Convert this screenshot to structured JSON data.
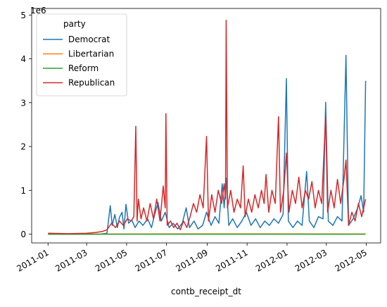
{
  "chart_data": {
    "type": "line",
    "title": "",
    "xlabel": "contb_receipt_dt",
    "ylabel": "",
    "y_offset_text": "1e6",
    "y_scale_multiplier": 1000000,
    "xlim": [
      "2010-12-07",
      "2012-05-23"
    ],
    "ylim": [
      -200000,
      5150000
    ],
    "x_tick_labels": [
      "2011-01",
      "2011-03",
      "2011-05",
      "2011-07",
      "2011-09",
      "2011-11",
      "2012-01",
      "2012-03",
      "2012-05"
    ],
    "x_ticks": [
      "2011-01-01",
      "2011-03-01",
      "2011-05-01",
      "2011-07-01",
      "2011-09-01",
      "2011-11-01",
      "2012-01-01",
      "2012-03-01",
      "2012-05-01"
    ],
    "y_ticks": [
      0,
      1000000,
      2000000,
      3000000,
      4000000,
      5000000
    ],
    "y_tick_labels": [
      "0",
      "1",
      "2",
      "3",
      "4",
      "5"
    ],
    "grid": false,
    "legend": {
      "title": "party",
      "placement": "upper-left",
      "entries": [
        "Democrat",
        "Libertarian",
        "Reform",
        "Republican"
      ]
    },
    "series": [
      {
        "name": "Democrat",
        "color": "#1f77b4",
        "points": [
          [
            "2011-01-01",
            0
          ],
          [
            "2011-03-20",
            0
          ],
          [
            "2011-04-01",
            20000
          ],
          [
            "2011-04-06",
            650000
          ],
          [
            "2011-04-09",
            200000
          ],
          [
            "2011-04-13",
            450000
          ],
          [
            "2011-04-17",
            150000
          ],
          [
            "2011-04-20",
            380000
          ],
          [
            "2011-04-24",
            500000
          ],
          [
            "2011-04-27",
            120000
          ],
          [
            "2011-04-30",
            680000
          ],
          [
            "2011-05-04",
            250000
          ],
          [
            "2011-05-09",
            320000
          ],
          [
            "2011-05-14",
            150000
          ],
          [
            "2011-05-20",
            300000
          ],
          [
            "2011-05-26",
            200000
          ],
          [
            "2011-06-02",
            350000
          ],
          [
            "2011-06-08",
            150000
          ],
          [
            "2011-06-13",
            450000
          ],
          [
            "2011-06-18",
            720000
          ],
          [
            "2011-06-23",
            300000
          ],
          [
            "2011-06-29",
            500000
          ],
          [
            "2011-07-05",
            150000
          ],
          [
            "2011-07-11",
            250000
          ],
          [
            "2011-07-18",
            120000
          ],
          [
            "2011-07-25",
            250000
          ],
          [
            "2011-07-31",
            600000
          ],
          [
            "2011-08-05",
            150000
          ],
          [
            "2011-08-12",
            300000
          ],
          [
            "2011-08-18",
            120000
          ],
          [
            "2011-08-25",
            200000
          ],
          [
            "2011-08-31",
            500000
          ],
          [
            "2011-09-07",
            200000
          ],
          [
            "2011-09-13",
            400000
          ],
          [
            "2011-09-19",
            250000
          ],
          [
            "2011-09-24",
            1150000
          ],
          [
            "2011-09-27",
            600000
          ],
          [
            "2011-09-30",
            1280000
          ],
          [
            "2011-10-04",
            200000
          ],
          [
            "2011-10-10",
            350000
          ],
          [
            "2011-10-17",
            150000
          ],
          [
            "2011-10-24",
            300000
          ],
          [
            "2011-10-31",
            500000
          ],
          [
            "2011-11-07",
            200000
          ],
          [
            "2011-11-14",
            350000
          ],
          [
            "2011-11-21",
            150000
          ],
          [
            "2011-11-28",
            300000
          ],
          [
            "2011-12-05",
            200000
          ],
          [
            "2011-12-12",
            350000
          ],
          [
            "2011-12-19",
            250000
          ],
          [
            "2011-12-26",
            450000
          ],
          [
            "2011-12-31",
            3550000
          ],
          [
            "2012-01-03",
            300000
          ],
          [
            "2012-01-10",
            150000
          ],
          [
            "2012-01-17",
            300000
          ],
          [
            "2012-01-24",
            200000
          ],
          [
            "2012-01-31",
            1430000
          ],
          [
            "2012-02-04",
            300000
          ],
          [
            "2012-02-11",
            150000
          ],
          [
            "2012-02-18",
            400000
          ],
          [
            "2012-02-25",
            350000
          ],
          [
            "2012-02-29",
            3010000
          ],
          [
            "2012-03-04",
            300000
          ],
          [
            "2012-03-11",
            200000
          ],
          [
            "2012-03-18",
            400000
          ],
          [
            "2012-03-25",
            300000
          ],
          [
            "2012-03-31",
            4080000
          ],
          [
            "2012-04-04",
            200000
          ],
          [
            "2012-04-11",
            350000
          ],
          [
            "2012-04-18",
            600000
          ],
          [
            "2012-04-23",
            880000
          ],
          [
            "2012-04-27",
            500000
          ],
          [
            "2012-04-30",
            3500000
          ]
        ]
      },
      {
        "name": "Libertarian",
        "color": "#ff7f0e",
        "points": [
          [
            "2011-01-01",
            0
          ],
          [
            "2011-06-01",
            5000
          ],
          [
            "2011-12-01",
            8000
          ],
          [
            "2012-04-30",
            5000
          ]
        ]
      },
      {
        "name": "Reform",
        "color": "#2ca02c",
        "points": [
          [
            "2011-01-01",
            0
          ],
          [
            "2012-04-30",
            0
          ]
        ]
      },
      {
        "name": "Republican",
        "color": "#d62728",
        "points": [
          [
            "2011-01-01",
            20000
          ],
          [
            "2011-02-01",
            10000
          ],
          [
            "2011-03-01",
            20000
          ],
          [
            "2011-03-15",
            40000
          ],
          [
            "2011-03-25",
            60000
          ],
          [
            "2011-04-01",
            100000
          ],
          [
            "2011-04-08",
            250000
          ],
          [
            "2011-04-14",
            150000
          ],
          [
            "2011-04-20",
            300000
          ],
          [
            "2011-04-26",
            200000
          ],
          [
            "2011-05-02",
            350000
          ],
          [
            "2011-05-08",
            300000
          ],
          [
            "2011-05-12",
            400000
          ],
          [
            "2011-05-15",
            2460000
          ],
          [
            "2011-05-17",
            300000
          ],
          [
            "2011-05-19",
            800000
          ],
          [
            "2011-05-23",
            350000
          ],
          [
            "2011-05-27",
            600000
          ],
          [
            "2011-06-01",
            300000
          ],
          [
            "2011-06-06",
            700000
          ],
          [
            "2011-06-11",
            350000
          ],
          [
            "2011-06-16",
            800000
          ],
          [
            "2011-06-21",
            300000
          ],
          [
            "2011-06-26",
            1100000
          ],
          [
            "2011-06-29",
            600000
          ],
          [
            "2011-06-30",
            2750000
          ],
          [
            "2011-07-02",
            200000
          ],
          [
            "2011-07-07",
            300000
          ],
          [
            "2011-07-12",
            150000
          ],
          [
            "2011-07-17",
            250000
          ],
          [
            "2011-07-22",
            100000
          ],
          [
            "2011-07-27",
            300000
          ],
          [
            "2011-08-01",
            150000
          ],
          [
            "2011-08-06",
            400000
          ],
          [
            "2011-08-11",
            700000
          ],
          [
            "2011-08-16",
            500000
          ],
          [
            "2011-08-21",
            900000
          ],
          [
            "2011-08-26",
            600000
          ],
          [
            "2011-08-31",
            2230000
          ],
          [
            "2011-09-03",
            300000
          ],
          [
            "2011-09-08",
            900000
          ],
          [
            "2011-09-13",
            500000
          ],
          [
            "2011-09-18",
            1000000
          ],
          [
            "2011-09-23",
            700000
          ],
          [
            "2011-09-27",
            1150000
          ],
          [
            "2011-09-29",
            800000
          ],
          [
            "2011-09-30",
            4880000
          ],
          [
            "2011-10-02",
            600000
          ],
          [
            "2011-10-07",
            1000000
          ],
          [
            "2011-10-12",
            500000
          ],
          [
            "2011-10-17",
            800000
          ],
          [
            "2011-10-22",
            600000
          ],
          [
            "2011-10-26",
            1560000
          ],
          [
            "2011-10-29",
            400000
          ],
          [
            "2011-11-03",
            800000
          ],
          [
            "2011-11-08",
            500000
          ],
          [
            "2011-11-13",
            900000
          ],
          [
            "2011-11-18",
            600000
          ],
          [
            "2011-11-23",
            1000000
          ],
          [
            "2011-11-27",
            700000
          ],
          [
            "2011-11-30",
            1360000
          ],
          [
            "2011-12-04",
            500000
          ],
          [
            "2011-12-09",
            1000000
          ],
          [
            "2011-12-14",
            700000
          ],
          [
            "2011-12-19",
            2680000
          ],
          [
            "2011-12-22",
            500000
          ],
          [
            "2011-12-27",
            1000000
          ],
          [
            "2011-12-31",
            1850000
          ],
          [
            "2012-01-04",
            500000
          ],
          [
            "2012-01-09",
            1000000
          ],
          [
            "2012-01-14",
            700000
          ],
          [
            "2012-01-19",
            1300000
          ],
          [
            "2012-01-24",
            600000
          ],
          [
            "2012-01-29",
            1000000
          ],
          [
            "2012-02-03",
            800000
          ],
          [
            "2012-02-08",
            1200000
          ],
          [
            "2012-02-13",
            600000
          ],
          [
            "2012-02-18",
            1000000
          ],
          [
            "2012-02-23",
            700000
          ],
          [
            "2012-02-29",
            2700000
          ],
          [
            "2012-03-03",
            500000
          ],
          [
            "2012-03-08",
            1000000
          ],
          [
            "2012-03-13",
            600000
          ],
          [
            "2012-03-18",
            1250000
          ],
          [
            "2012-03-23",
            700000
          ],
          [
            "2012-03-28",
            1260000
          ],
          [
            "2012-03-31",
            1690000
          ],
          [
            "2012-04-04",
            200000
          ],
          [
            "2012-04-09",
            500000
          ],
          [
            "2012-04-14",
            300000
          ],
          [
            "2012-04-19",
            700000
          ],
          [
            "2012-04-24",
            400000
          ],
          [
            "2012-04-30",
            800000
          ]
        ]
      }
    ]
  }
}
